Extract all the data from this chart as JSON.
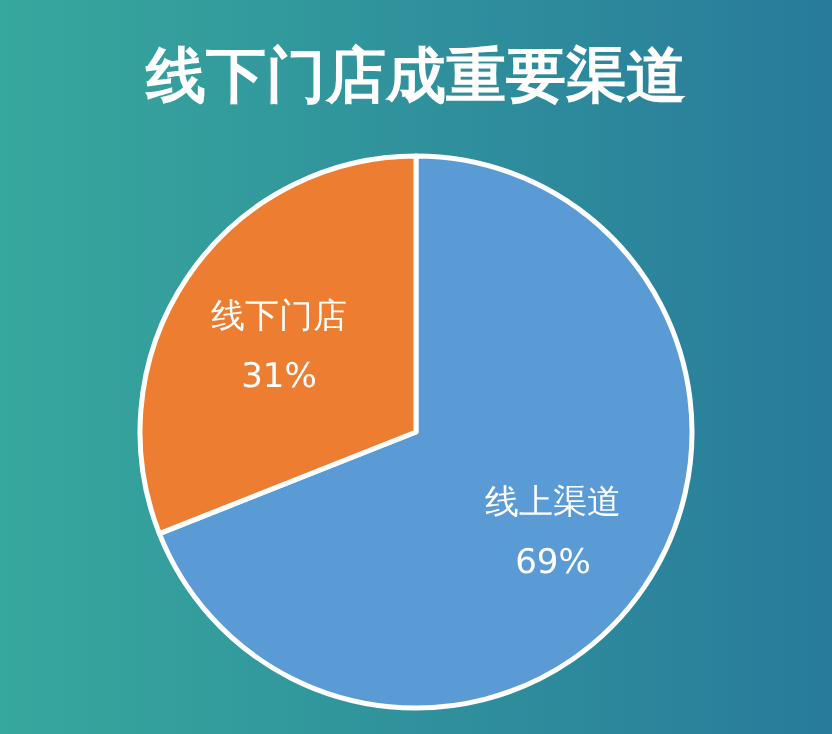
{
  "chart_data": {
    "type": "pie",
    "title": "线下门店成重要渠道",
    "categories": [
      "线上渠道",
      "线下门店"
    ],
    "values": [
      69,
      31
    ],
    "colors": [
      "#5b9bd5",
      "#ed7d31"
    ],
    "value_labels": [
      "69%",
      "31%"
    ]
  }
}
